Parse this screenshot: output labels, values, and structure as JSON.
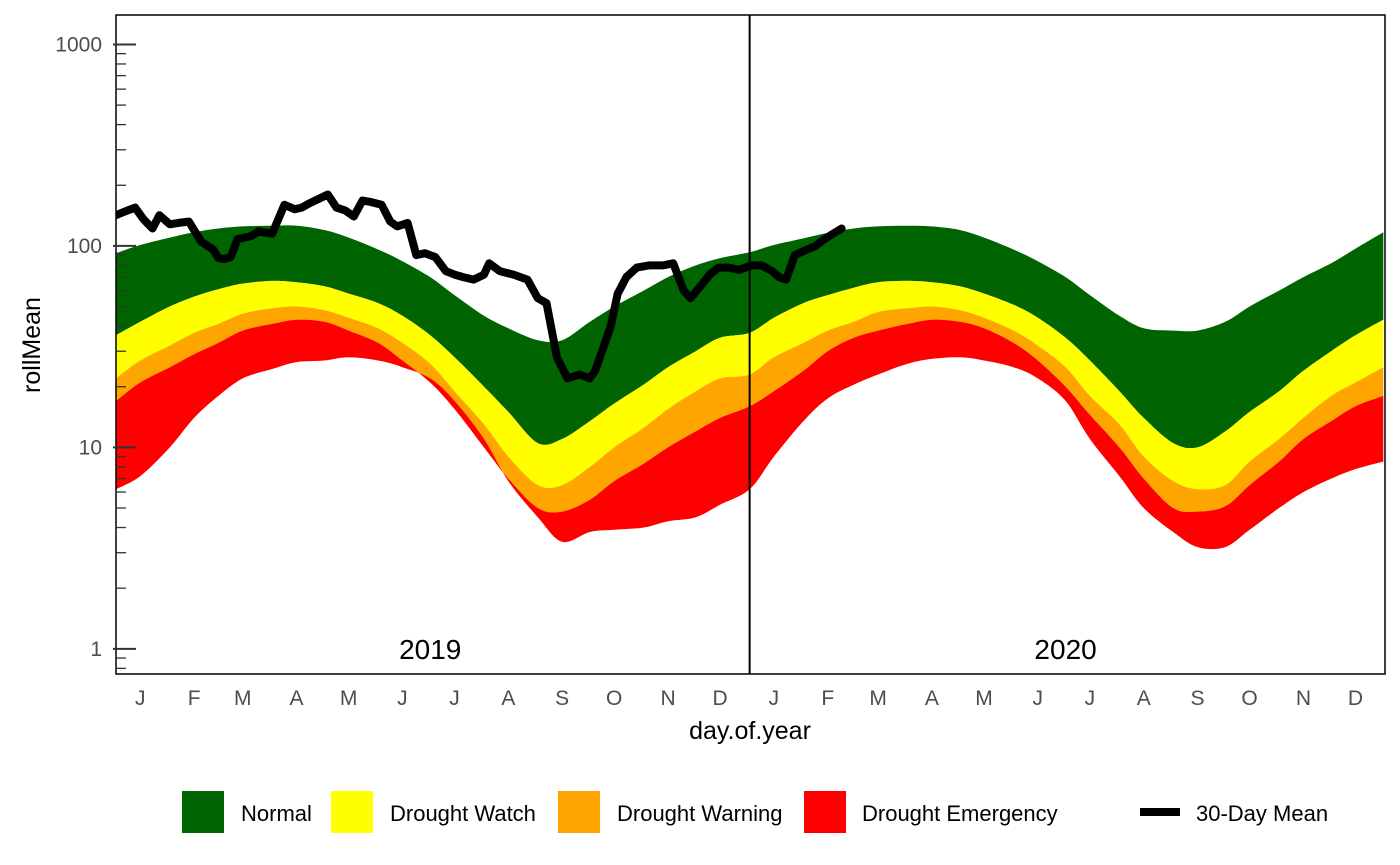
{
  "chart_data": {
    "type": "area",
    "xlabel": "day.of.year",
    "ylabel": "rollMean",
    "y_scale": "log10",
    "ylim": [
      0.75,
      1400
    ],
    "y_ticks": [
      {
        "value": 1,
        "label": "1"
      },
      {
        "value": 10,
        "label": "10"
      },
      {
        "value": 100,
        "label": "100"
      },
      {
        "value": 1000,
        "label": "1000"
      }
    ],
    "x_ticks": [
      {
        "date": "2019-01-15",
        "label": "J"
      },
      {
        "date": "2019-02-15",
        "label": "F"
      },
      {
        "date": "2019-03-15",
        "label": "M"
      },
      {
        "date": "2019-04-15",
        "label": "A"
      },
      {
        "date": "2019-05-15",
        "label": "M"
      },
      {
        "date": "2019-06-15",
        "label": "J"
      },
      {
        "date": "2019-07-15",
        "label": "J"
      },
      {
        "date": "2019-08-15",
        "label": "A"
      },
      {
        "date": "2019-09-15",
        "label": "S"
      },
      {
        "date": "2019-10-15",
        "label": "O"
      },
      {
        "date": "2019-11-15",
        "label": "N"
      },
      {
        "date": "2019-12-15",
        "label": "D"
      },
      {
        "date": "2020-01-15",
        "label": "J"
      },
      {
        "date": "2020-02-15",
        "label": "F"
      },
      {
        "date": "2020-03-15",
        "label": "M"
      },
      {
        "date": "2020-04-15",
        "label": "A"
      },
      {
        "date": "2020-05-15",
        "label": "M"
      },
      {
        "date": "2020-06-15",
        "label": "J"
      },
      {
        "date": "2020-07-15",
        "label": "J"
      },
      {
        "date": "2020-08-15",
        "label": "A"
      },
      {
        "date": "2020-09-15",
        "label": "S"
      },
      {
        "date": "2020-10-15",
        "label": "O"
      },
      {
        "date": "2020-11-15",
        "label": "N"
      },
      {
        "date": "2020-12-15",
        "label": "D"
      }
    ],
    "xlim": [
      "2019-01-01",
      "2020-12-31"
    ],
    "year_divider": "2020-01-01",
    "year_labels": [
      {
        "label": "2019",
        "date": "2019-07-01",
        "y": 1.0
      },
      {
        "label": "2020",
        "date": "2020-07-01",
        "y": 1.0
      }
    ],
    "bands": {
      "dates": [
        "2019-01-01",
        "2019-01-15",
        "2019-02-01",
        "2019-02-15",
        "2019-03-01",
        "2019-03-15",
        "2019-04-01",
        "2019-04-15",
        "2019-05-01",
        "2019-05-15",
        "2019-06-01",
        "2019-06-15",
        "2019-07-01",
        "2019-07-15",
        "2019-08-01",
        "2019-08-15",
        "2019-09-01",
        "2019-09-15",
        "2019-10-01",
        "2019-10-15",
        "2019-11-01",
        "2019-11-15",
        "2019-12-01",
        "2019-12-15",
        "2020-01-01",
        "2020-01-15",
        "2020-02-01",
        "2020-02-15",
        "2020-03-01",
        "2020-03-15",
        "2020-04-01",
        "2020-04-15",
        "2020-05-01",
        "2020-05-15",
        "2020-06-01",
        "2020-06-15",
        "2020-07-01",
        "2020-07-15",
        "2020-08-01",
        "2020-08-15",
        "2020-09-01",
        "2020-09-15",
        "2020-10-01",
        "2020-10-15",
        "2020-11-01",
        "2020-11-15",
        "2020-12-01",
        "2020-12-15",
        "2020-12-31"
      ],
      "normal_top": [
        92,
        101,
        110,
        117,
        122,
        125,
        126,
        126,
        120,
        110,
        96,
        84,
        70,
        57,
        45,
        39,
        34,
        34,
        42,
        50,
        60,
        70,
        80,
        87,
        93,
        101,
        109,
        116,
        122,
        125,
        126,
        125,
        120,
        110,
        96,
        84,
        70,
        57,
        45,
        39,
        38,
        38,
        42,
        50,
        60,
        70,
        82,
        97,
        117
      ],
      "watch_top": [
        36,
        42,
        50,
        56,
        61,
        65,
        67,
        66,
        63,
        58,
        52,
        45,
        36,
        28,
        20,
        15,
        10.5,
        11,
        13.5,
        16.5,
        20.5,
        25,
        30,
        35,
        37,
        44,
        52,
        57,
        62,
        66,
        67,
        66,
        63,
        58,
        51,
        44,
        35,
        27,
        19,
        14,
        10.5,
        10,
        12,
        15,
        19,
        24,
        30,
        36,
        43
      ],
      "warn_top": [
        22,
        27,
        32,
        37,
        41,
        46,
        49,
        50,
        48,
        44,
        39,
        33,
        26,
        19,
        13,
        9,
        6.5,
        6.5,
        8,
        10,
        12.5,
        15.5,
        19,
        22,
        23,
        28,
        33,
        38,
        42,
        47,
        49,
        50,
        48,
        44,
        38,
        32,
        25,
        18,
        13,
        9,
        6.8,
        6.2,
        6.5,
        8.5,
        11,
        14,
        18,
        21,
        25
      ],
      "emer_top": [
        17,
        21,
        25,
        29,
        33,
        38,
        41,
        43,
        42,
        38,
        33,
        27,
        21,
        15.5,
        10,
        7,
        5,
        4.8,
        5.5,
        6.8,
        8.3,
        10,
        12,
        14,
        16,
        19,
        24,
        30,
        35,
        38,
        41,
        43,
        42,
        39,
        33,
        27,
        20,
        14.5,
        10,
        7,
        5,
        4.8,
        5.1,
        6.5,
        8.5,
        11,
        13.5,
        16,
        18
      ],
      "emer_bottom": [
        6.2,
        7.2,
        10,
        14,
        18,
        22,
        24.5,
        26.5,
        27,
        28,
        27,
        25,
        22,
        17,
        11,
        6.8,
        4.5,
        3.4,
        3.8,
        3.9,
        4.0,
        4.3,
        4.5,
        5.2,
        6.2,
        9,
        13.5,
        17.5,
        20.5,
        23,
        26,
        27.5,
        28,
        27,
        25,
        22,
        17,
        11,
        7.2,
        5,
        3.8,
        3.2,
        3.2,
        3.9,
        5,
        6,
        7,
        7.8,
        8.5
      ]
    },
    "series": [
      {
        "name": "30-Day Mean",
        "dates": [
          "2019-01-01",
          "2019-01-06",
          "2019-01-12",
          "2019-01-17",
          "2019-01-22",
          "2019-01-26",
          "2019-02-01",
          "2019-02-06",
          "2019-02-12",
          "2019-02-19",
          "2019-02-26",
          "2019-03-01",
          "2019-03-04",
          "2019-03-08",
          "2019-03-12",
          "2019-03-16",
          "2019-03-20",
          "2019-03-24",
          "2019-04-01",
          "2019-04-08",
          "2019-04-14",
          "2019-04-18",
          "2019-04-22",
          "2019-04-27",
          "2019-05-03",
          "2019-05-08",
          "2019-05-13",
          "2019-05-18",
          "2019-05-23",
          "2019-05-28",
          "2019-06-03",
          "2019-06-08",
          "2019-06-12",
          "2019-06-18",
          "2019-06-23",
          "2019-06-28",
          "2019-07-04",
          "2019-07-10",
          "2019-07-15",
          "2019-07-20",
          "2019-07-26",
          "2019-08-01",
          "2019-08-04",
          "2019-08-10",
          "2019-08-18",
          "2019-08-26",
          "2019-09-01",
          "2019-09-06",
          "2019-09-12",
          "2019-09-18",
          "2019-09-25",
          "2019-10-01",
          "2019-10-04",
          "2019-10-08",
          "2019-10-13",
          "2019-10-17",
          "2019-10-22",
          "2019-10-28",
          "2019-11-04",
          "2019-11-12",
          "2019-11-18",
          "2019-11-24",
          "2019-11-28",
          "2019-12-03",
          "2019-12-09",
          "2019-12-14",
          "2019-12-20",
          "2019-12-26",
          "2020-01-02",
          "2020-01-08",
          "2020-01-14",
          "2020-01-18",
          "2020-01-22",
          "2020-01-27",
          "2020-02-02",
          "2020-02-08",
          "2020-02-13",
          "2020-02-18",
          "2020-02-23"
        ],
        "values": [
          142,
          148,
          155,
          135,
          122,
          142,
          128,
          130,
          132,
          105,
          96,
          87,
          86,
          88,
          108,
          110,
          112,
          118,
          115,
          160,
          152,
          155,
          162,
          170,
          180,
          155,
          150,
          140,
          168,
          165,
          160,
          132,
          125,
          130,
          90,
          92,
          88,
          75,
          72,
          70,
          68,
          72,
          82,
          75,
          72,
          68,
          55,
          52,
          28,
          22,
          23,
          22,
          24,
          30,
          40,
          58,
          70,
          78,
          80,
          80,
          82,
          60,
          55,
          62,
          72,
          78,
          78,
          76,
          80,
          80,
          75,
          70,
          68,
          90,
          95,
          100,
          108,
          115,
          122
        ]
      }
    ]
  },
  "legend": {
    "items": [
      {
        "label": "Normal",
        "color": "#006400"
      },
      {
        "label": "Drought Watch",
        "color": "#ffff00"
      },
      {
        "label": "Drought Warning",
        "color": "#ffa500"
      },
      {
        "label": "Drought Emergency",
        "color": "#ff0000"
      },
      {
        "label": "30-Day Mean",
        "color": "#000000"
      }
    ]
  }
}
